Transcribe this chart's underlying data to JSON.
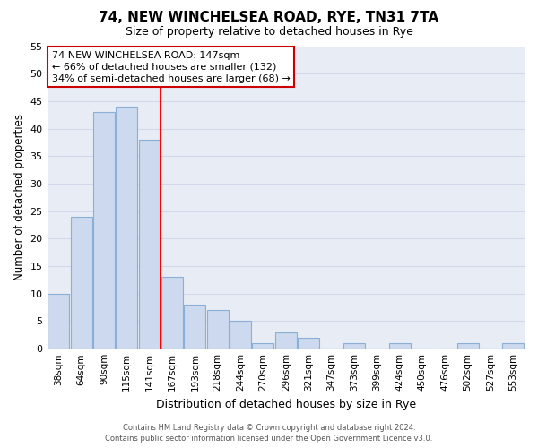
{
  "title": "74, NEW WINCHELSEA ROAD, RYE, TN31 7TA",
  "subtitle": "Size of property relative to detached houses in Rye",
  "xlabel": "Distribution of detached houses by size in Rye",
  "ylabel": "Number of detached properties",
  "bar_labels": [
    "38sqm",
    "64sqm",
    "90sqm",
    "115sqm",
    "141sqm",
    "167sqm",
    "193sqm",
    "218sqm",
    "244sqm",
    "270sqm",
    "296sqm",
    "321sqm",
    "347sqm",
    "373sqm",
    "399sqm",
    "424sqm",
    "450sqm",
    "476sqm",
    "502sqm",
    "527sqm",
    "553sqm"
  ],
  "bar_values": [
    10,
    24,
    43,
    44,
    38,
    13,
    8,
    7,
    5,
    1,
    3,
    2,
    0,
    1,
    0,
    1,
    0,
    0,
    1,
    0,
    1
  ],
  "bar_color": "#ccd9ee",
  "bar_edge_color": "#8ab0d8",
  "vline_x": 4.5,
  "vline_color": "#ff0000",
  "ylim": [
    0,
    55
  ],
  "yticks": [
    0,
    5,
    10,
    15,
    20,
    25,
    30,
    35,
    40,
    45,
    50,
    55
  ],
  "annotation_text": "74 NEW WINCHELSEA ROAD: 147sqm\n← 66% of detached houses are smaller (132)\n34% of semi-detached houses are larger (68) →",
  "annotation_box_color": "#ffffff",
  "annotation_box_edge": "#cc0000",
  "footer_line1": "Contains HM Land Registry data © Crown copyright and database right 2024.",
  "footer_line2": "Contains public sector information licensed under the Open Government Licence v3.0.",
  "grid_color": "#d0d8ea",
  "background_color": "#e8edf5"
}
